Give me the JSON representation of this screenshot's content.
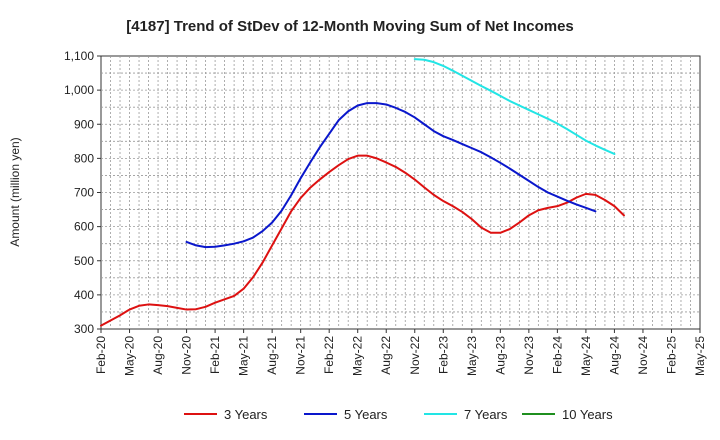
{
  "chart_data": {
    "type": "line",
    "title": "[4187]  Trend of StDev of 12-Month Moving Sum of Net Incomes",
    "ylabel": "Amount (million yen)",
    "xlabel": "",
    "ylim": [
      300,
      1100
    ],
    "yticks": [
      300,
      400,
      500,
      600,
      700,
      800,
      900,
      1000,
      1100
    ],
    "ytick_labels": [
      "300",
      "400",
      "500",
      "600",
      "700",
      "800",
      "900",
      "1,000",
      "1,100"
    ],
    "xticks": [
      "Feb-20",
      "May-20",
      "Aug-20",
      "Nov-20",
      "Feb-21",
      "May-21",
      "Aug-21",
      "Nov-21",
      "Feb-22",
      "May-22",
      "Aug-22",
      "Nov-22",
      "Feb-23",
      "May-23",
      "Aug-23",
      "Nov-23",
      "Feb-24",
      "May-24",
      "Aug-24",
      "Nov-24",
      "Feb-25",
      "May-25"
    ],
    "grid": true,
    "legend_position": "bottom",
    "series": [
      {
        "name": "3 Years",
        "color": "#dd1111",
        "points": [
          [
            0,
            310
          ],
          [
            1,
            325
          ],
          [
            2,
            340
          ],
          [
            3,
            357
          ],
          [
            4,
            368
          ],
          [
            5,
            372
          ],
          [
            6,
            370
          ],
          [
            7,
            367
          ],
          [
            8,
            362
          ],
          [
            9,
            357
          ],
          [
            10,
            358
          ],
          [
            11,
            365
          ],
          [
            12,
            377
          ],
          [
            13,
            387
          ],
          [
            14,
            397
          ],
          [
            15,
            418
          ],
          [
            16,
            452
          ],
          [
            17,
            495
          ],
          [
            18,
            545
          ],
          [
            19,
            595
          ],
          [
            20,
            645
          ],
          [
            21,
            684
          ],
          [
            22,
            714
          ],
          [
            23,
            738
          ],
          [
            24,
            760
          ],
          [
            25,
            780
          ],
          [
            26,
            798
          ],
          [
            27,
            808
          ],
          [
            28,
            808
          ],
          [
            29,
            800
          ],
          [
            30,
            788
          ],
          [
            31,
            775
          ],
          [
            32,
            758
          ],
          [
            33,
            738
          ],
          [
            34,
            715
          ],
          [
            35,
            693
          ],
          [
            36,
            675
          ],
          [
            37,
            660
          ],
          [
            38,
            643
          ],
          [
            39,
            622
          ],
          [
            40,
            597
          ],
          [
            41,
            582
          ],
          [
            42,
            582
          ],
          [
            43,
            593
          ],
          [
            44,
            612
          ],
          [
            45,
            633
          ],
          [
            46,
            648
          ],
          [
            47,
            655
          ],
          [
            48,
            660
          ],
          [
            49,
            670
          ],
          [
            50,
            685
          ],
          [
            51,
            696
          ],
          [
            52,
            693
          ],
          [
            53,
            678
          ],
          [
            54,
            660
          ],
          [
            55,
            633
          ]
        ]
      },
      {
        "name": "5 Years",
        "color": "#0a17cc",
        "points": [
          [
            9,
            555
          ],
          [
            10,
            545
          ],
          [
            11,
            540
          ],
          [
            12,
            541
          ],
          [
            13,
            545
          ],
          [
            14,
            550
          ],
          [
            15,
            557
          ],
          [
            16,
            568
          ],
          [
            17,
            587
          ],
          [
            18,
            612
          ],
          [
            19,
            647
          ],
          [
            20,
            692
          ],
          [
            21,
            742
          ],
          [
            22,
            788
          ],
          [
            23,
            832
          ],
          [
            24,
            872
          ],
          [
            25,
            912
          ],
          [
            26,
            938
          ],
          [
            27,
            955
          ],
          [
            28,
            962
          ],
          [
            29,
            962
          ],
          [
            30,
            958
          ],
          [
            31,
            948
          ],
          [
            32,
            936
          ],
          [
            33,
            920
          ],
          [
            34,
            900
          ],
          [
            35,
            880
          ],
          [
            36,
            865
          ],
          [
            37,
            854
          ],
          [
            38,
            842
          ],
          [
            39,
            830
          ],
          [
            40,
            818
          ],
          [
            41,
            803
          ],
          [
            42,
            787
          ],
          [
            43,
            770
          ],
          [
            44,
            752
          ],
          [
            45,
            734
          ],
          [
            46,
            716
          ],
          [
            47,
            700
          ],
          [
            48,
            688
          ],
          [
            49,
            676
          ],
          [
            50,
            665
          ],
          [
            51,
            655
          ],
          [
            52,
            645
          ]
        ]
      },
      {
        "name": "7 Years",
        "color": "#22e5e5",
        "points": [
          [
            33,
            1091
          ],
          [
            34,
            1089
          ],
          [
            35,
            1082
          ],
          [
            36,
            1071
          ],
          [
            37,
            1057
          ],
          [
            38,
            1042
          ],
          [
            39,
            1027
          ],
          [
            40,
            1012
          ],
          [
            41,
            998
          ],
          [
            42,
            983
          ],
          [
            43,
            968
          ],
          [
            44,
            955
          ],
          [
            45,
            942
          ],
          [
            46,
            929
          ],
          [
            47,
            916
          ],
          [
            48,
            902
          ],
          [
            49,
            886
          ],
          [
            50,
            869
          ],
          [
            51,
            852
          ],
          [
            52,
            838
          ],
          [
            53,
            825
          ],
          [
            54,
            813
          ]
        ]
      },
      {
        "name": "10 Years",
        "color": "#1f8f1f",
        "points": []
      }
    ]
  }
}
